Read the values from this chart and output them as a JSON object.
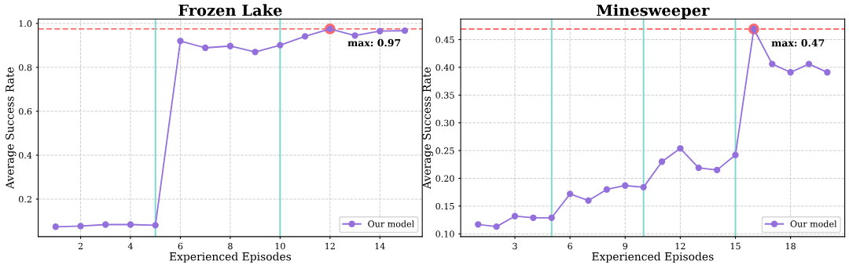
{
  "chart_data": [
    {
      "type": "line",
      "title": "Frozen Lake",
      "xlabel": "Experienced Episodes",
      "ylabel": "Average Success Rate",
      "x": [
        1,
        2,
        3,
        4,
        5,
        6,
        7,
        8,
        9,
        10,
        11,
        12,
        13,
        14,
        15
      ],
      "series": [
        {
          "name": "Our model",
          "color": "#9370db",
          "values": [
            0.074,
            0.077,
            0.084,
            0.084,
            0.081,
            0.92,
            0.889,
            0.897,
            0.87,
            0.901,
            0.941,
            0.975,
            0.945,
            0.965,
            0.967
          ]
        }
      ],
      "xlim": [
        0.3,
        15.7
      ],
      "xticks": [
        2,
        4,
        6,
        8,
        10,
        12,
        14
      ],
      "ylim": [
        0.029,
        1.02
      ],
      "yticks": [
        0.2,
        0.4,
        0.6,
        0.8,
        {
          "value": 1.0,
          "label": "1.0"
        }
      ],
      "ref_lines": [
        {
          "axis": "y",
          "value": 0.975,
          "color": "#ff7070",
          "line_style": "dashed"
        },
        {
          "axis": "x",
          "value": 5,
          "color": "#7fd8cf",
          "line_style": "solid"
        },
        {
          "axis": "x",
          "value": 10,
          "color": "#7fd8cf",
          "line_style": "solid"
        }
      ],
      "annotations": [
        {
          "text": "max: 0.97",
          "x": 12,
          "y": 0.975
        }
      ],
      "grid": true,
      "legend": "bottom right",
      "marker": "circle",
      "line_style": "solid"
    },
    {
      "type": "line",
      "title": "Minesweeper",
      "xlabel": "Experienced Episodes",
      "ylabel": "Average Success Rate",
      "x": [
        1,
        2,
        3,
        4,
        5,
        6,
        7,
        8,
        9,
        10,
        11,
        12,
        13,
        14,
        15,
        16,
        17,
        18,
        19,
        20
      ],
      "series": [
        {
          "name": "Our model",
          "color": "#9370db",
          "values": [
            0.117,
            0.113,
            0.132,
            0.129,
            0.129,
            0.172,
            0.16,
            0.18,
            0.187,
            0.184,
            0.23,
            0.254,
            0.219,
            0.215,
            0.242,
            0.469,
            0.406,
            0.391,
            0.406,
            0.391
          ]
        }
      ],
      "xlim": [
        0.05,
        20.95
      ],
      "xticks": [
        3,
        6,
        9,
        12,
        15,
        18
      ],
      "ylim": [
        0.095,
        0.487
      ],
      "yticks": [
        {
          "value": 0.1,
          "label": "0.10"
        },
        0.15,
        {
          "value": 0.2,
          "label": "0.20"
        },
        0.25,
        {
          "value": 0.3,
          "label": "0.30"
        },
        0.35,
        {
          "value": 0.4,
          "label": "0.40"
        },
        0.45
      ],
      "ref_lines": [
        {
          "axis": "y",
          "value": 0.469,
          "color": "#ff7070",
          "line_style": "dashed"
        },
        {
          "axis": "x",
          "value": 5,
          "color": "#7fd8cf",
          "line_style": "solid"
        },
        {
          "axis": "x",
          "value": 10,
          "color": "#7fd8cf",
          "line_style": "solid"
        },
        {
          "axis": "x",
          "value": 15,
          "color": "#7fd8cf",
          "line_style": "solid"
        }
      ],
      "annotations": [
        {
          "text": "max: 0.47",
          "x": 16,
          "y": 0.469
        }
      ],
      "grid": true,
      "legend": "bottom right",
      "marker": "circle",
      "line_style": "solid"
    }
  ]
}
